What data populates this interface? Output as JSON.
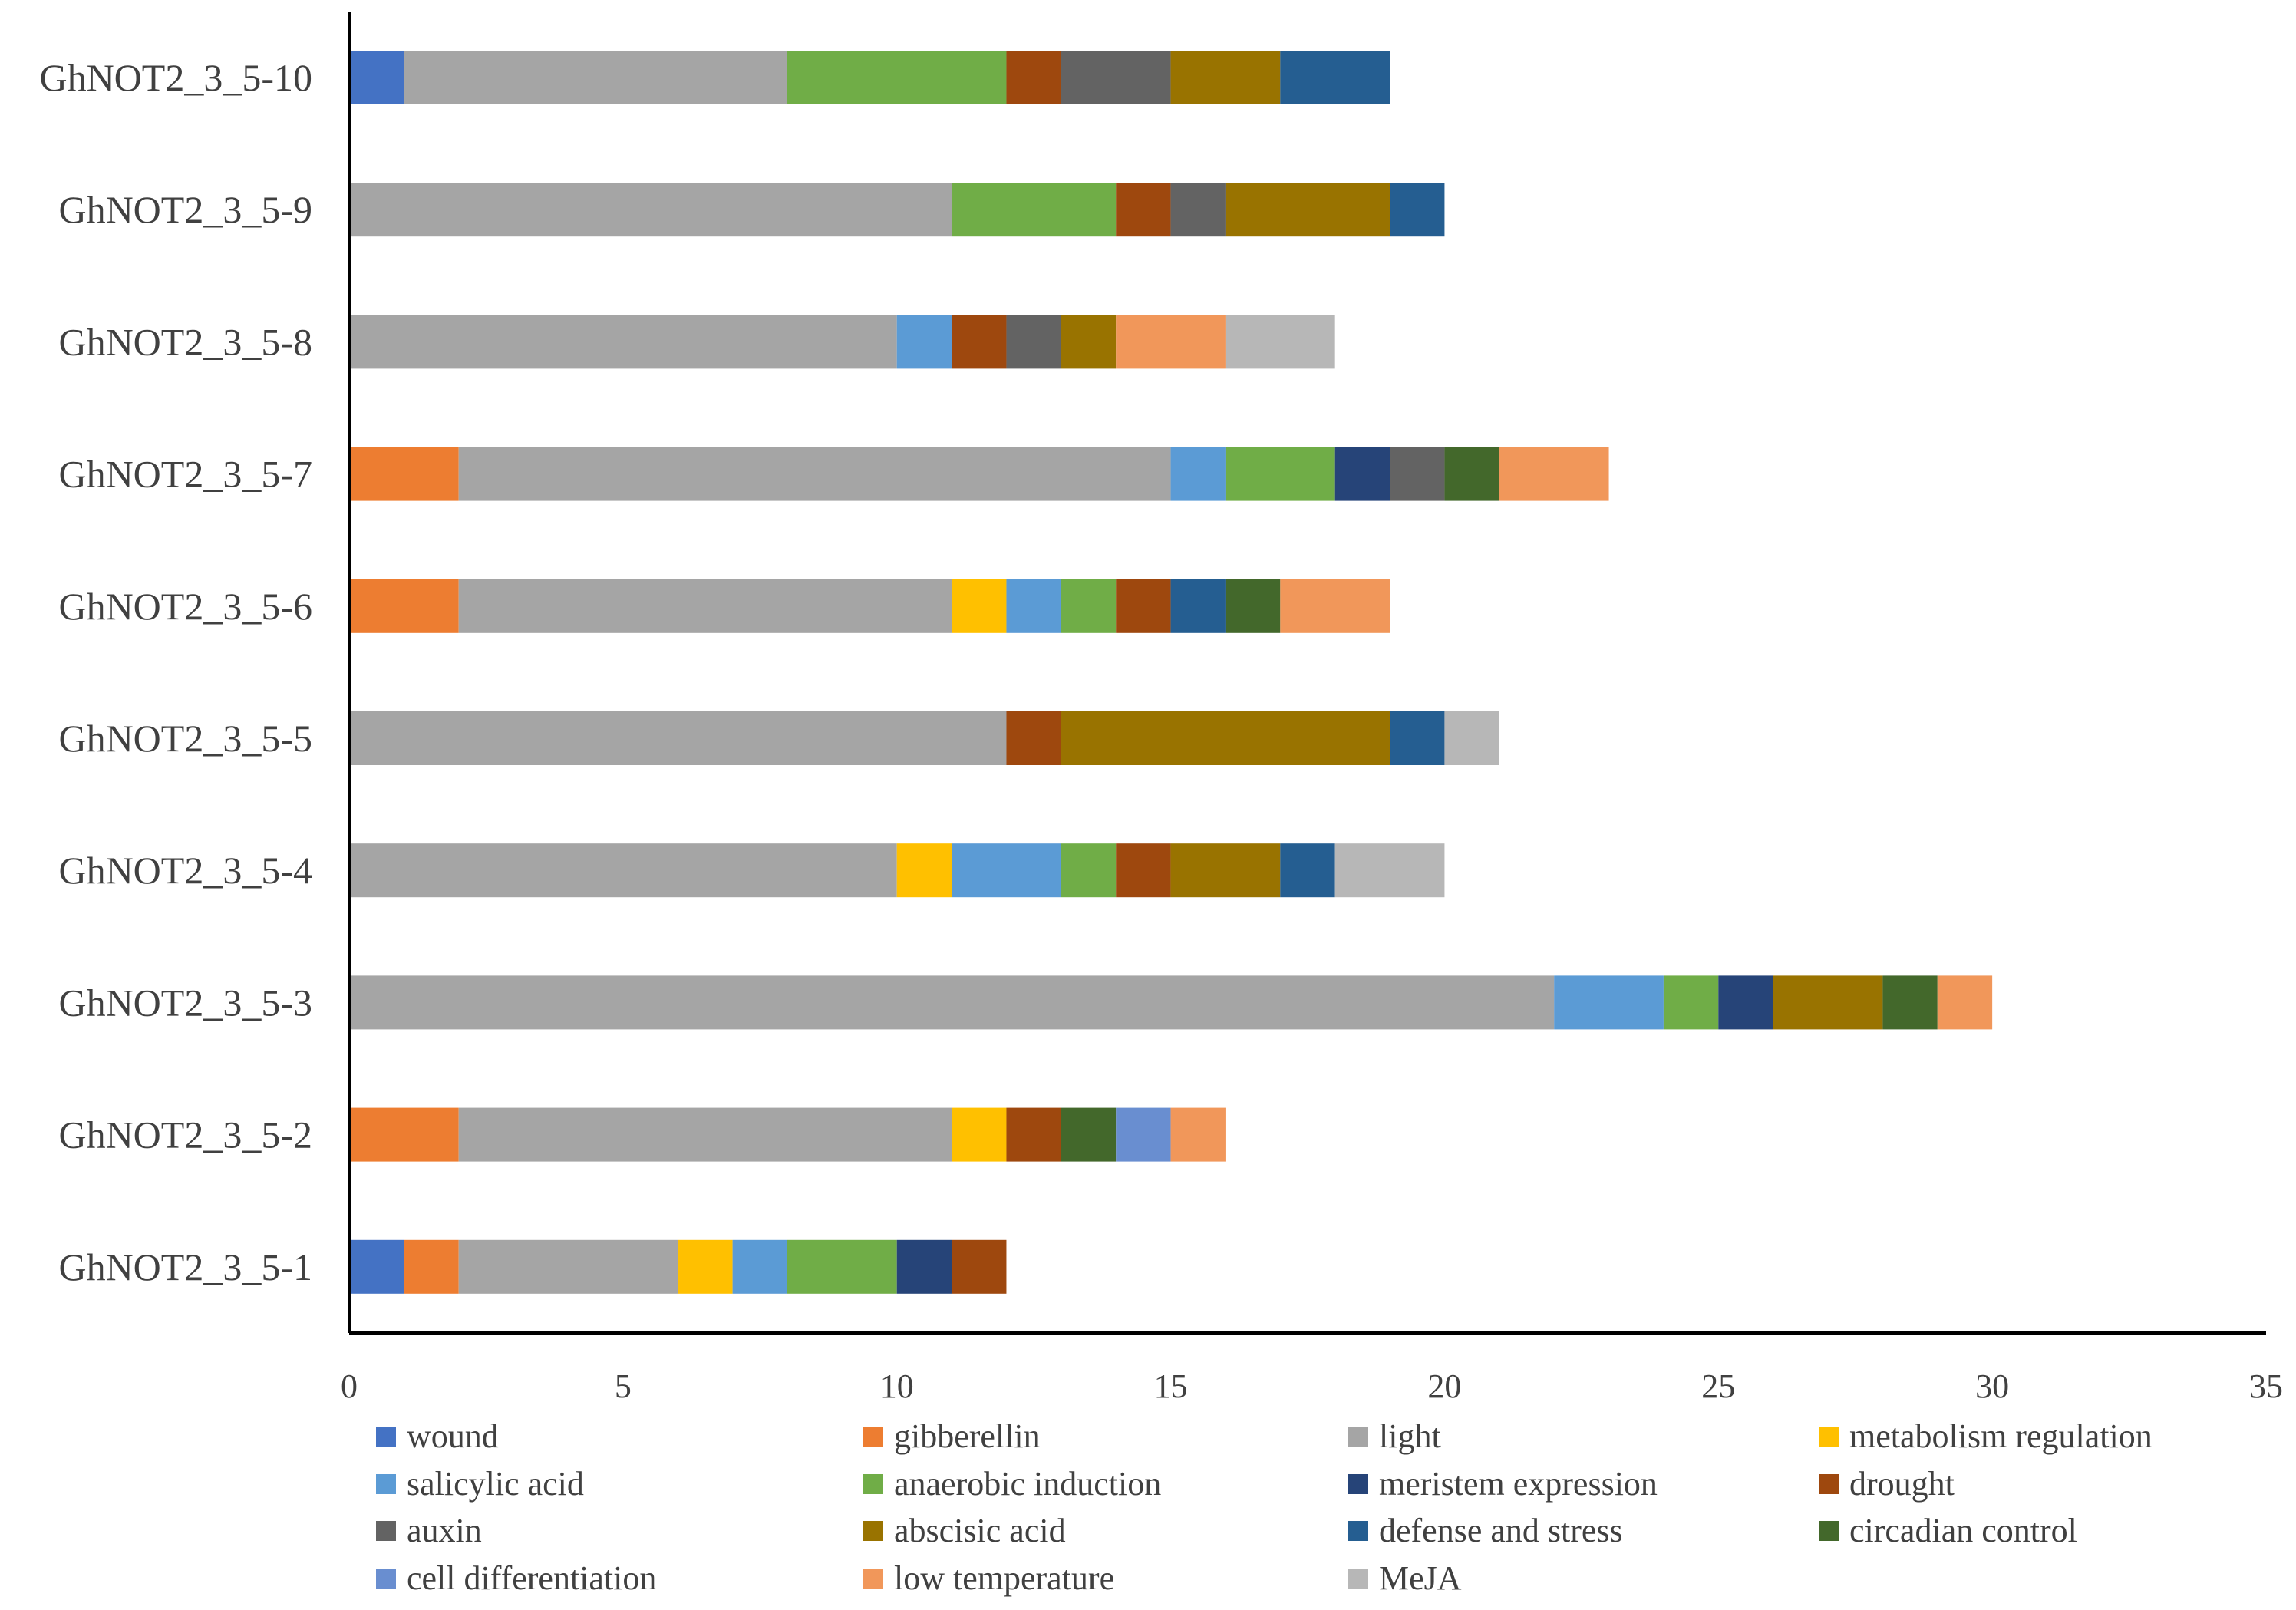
{
  "chart_data": {
    "type": "bar",
    "orientation": "horizontal",
    "stacked": true,
    "title": "",
    "xlabel": "",
    "ylabel": "",
    "xlim": [
      0,
      35
    ],
    "xticks": [
      0,
      5,
      10,
      15,
      20,
      25,
      30,
      35
    ],
    "grid": false,
    "legend_position": "bottom",
    "categories": [
      "GhNOT2_3_5-1",
      "GhNOT2_3_5-2",
      "GhNOT2_3_5-3",
      "GhNOT2_3_5-4",
      "GhNOT2_3_5-5",
      "GhNOT2_3_5-6",
      "GhNOT2_3_5-7",
      "GhNOT2_3_5-8",
      "GhNOT2_3_5-9",
      "GhNOT2_3_5-10"
    ],
    "series": [
      {
        "name": "wound",
        "color": "#4472C4",
        "values": [
          1,
          0,
          0,
          0,
          0,
          0,
          0,
          0,
          0,
          1
        ]
      },
      {
        "name": "gibberellin",
        "color": "#ED7D31",
        "values": [
          1,
          2,
          0,
          0,
          0,
          2,
          2,
          0,
          0,
          0
        ]
      },
      {
        "name": "light",
        "color": "#A5A5A5",
        "values": [
          4,
          9,
          22,
          10,
          12,
          9,
          13,
          10,
          11,
          7
        ]
      },
      {
        "name": "metabolism regulation",
        "color": "#FFC000",
        "values": [
          1,
          1,
          0,
          1,
          0,
          1,
          0,
          0,
          0,
          0
        ]
      },
      {
        "name": "salicylic acid",
        "color": "#5B9BD5",
        "values": [
          1,
          0,
          2,
          2,
          0,
          1,
          1,
          1,
          0,
          0
        ]
      },
      {
        "name": "anaerobic induction",
        "color": "#70AD47",
        "values": [
          2,
          0,
          1,
          1,
          0,
          1,
          2,
          0,
          3,
          4
        ]
      },
      {
        "name": "meristem expression",
        "color": "#264478",
        "values": [
          1,
          0,
          1,
          0,
          0,
          0,
          1,
          0,
          0,
          0
        ]
      },
      {
        "name": "drought",
        "color": "#9E480E",
        "values": [
          1,
          1,
          0,
          1,
          1,
          1,
          0,
          1,
          1,
          1
        ]
      },
      {
        "name": "auxin",
        "color": "#636363",
        "values": [
          0,
          0,
          0,
          0,
          0,
          0,
          1,
          1,
          1,
          2
        ]
      },
      {
        "name": "abscisic acid",
        "color": "#997300",
        "values": [
          0,
          0,
          2,
          2,
          6,
          0,
          0,
          1,
          3,
          2
        ]
      },
      {
        "name": "defense and stress",
        "color": "#255E91",
        "values": [
          0,
          0,
          0,
          1,
          1,
          1,
          0,
          0,
          1,
          2
        ]
      },
      {
        "name": "circadian control",
        "color": "#43682B",
        "values": [
          0,
          1,
          1,
          0,
          0,
          1,
          1,
          0,
          0,
          0
        ]
      },
      {
        "name": "cell differentiation",
        "color": "#698ED0",
        "values": [
          0,
          1,
          0,
          0,
          0,
          0,
          0,
          0,
          0,
          0
        ]
      },
      {
        "name": "low temperature",
        "color": "#F1975A",
        "values": [
          0,
          1,
          1,
          0,
          0,
          2,
          2,
          2,
          0,
          0
        ]
      },
      {
        "name": "MeJA",
        "color": "#B7B7B7",
        "values": [
          0,
          0,
          0,
          2,
          1,
          0,
          0,
          2,
          0,
          0
        ]
      }
    ],
    "legend_columns": 4
  }
}
